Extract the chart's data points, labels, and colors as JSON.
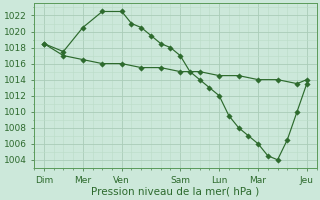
{
  "bg_color": "#cce8da",
  "grid_color_major": "#aaccb8",
  "grid_color_minor": "#bbddc8",
  "line_color": "#2d6a2d",
  "xlabel": "Pression niveau de la mer( hPa )",
  "xlabel_fontsize": 7.5,
  "tick_fontsize": 6.5,
  "ylim": [
    1003.0,
    1023.5
  ],
  "yticks": [
    1004,
    1006,
    1008,
    1010,
    1012,
    1014,
    1016,
    1018,
    1020,
    1022
  ],
  "xlim": [
    -0.5,
    14.0
  ],
  "day_positions": [
    0,
    2,
    4,
    7,
    9,
    11,
    13.5
  ],
  "day_labels": [
    "Dim",
    "Mer",
    "Ven",
    "Sam",
    "Lun",
    "Mar",
    "Jeu"
  ],
  "line1_x": [
    0,
    1,
    2,
    3,
    4,
    4.5,
    5,
    5.5,
    6,
    6.5,
    7,
    7.5,
    8,
    8.5,
    9,
    9.5,
    10,
    10.5,
    11,
    11.5,
    12,
    12.5,
    13,
    13.5
  ],
  "line1_y": [
    1018.5,
    1017.5,
    1020.5,
    1022.5,
    1022.5,
    1021.0,
    1020.5,
    1019.5,
    1018.5,
    1018.0,
    1017.0,
    1015.0,
    1014.0,
    1013.0,
    1012.0,
    1009.5,
    1008.0,
    1007.0,
    1006.0,
    1004.5,
    1004.0,
    1006.5,
    1010.0,
    1013.5
  ],
  "line2_x": [
    0,
    1,
    2,
    3,
    4,
    5,
    6,
    7,
    8,
    9,
    10,
    11,
    12,
    13,
    13.5
  ],
  "line2_y": [
    1018.5,
    1017.0,
    1016.5,
    1016.0,
    1016.0,
    1015.5,
    1015.5,
    1015.0,
    1015.0,
    1014.5,
    1014.5,
    1014.0,
    1014.0,
    1013.5,
    1014.0
  ]
}
